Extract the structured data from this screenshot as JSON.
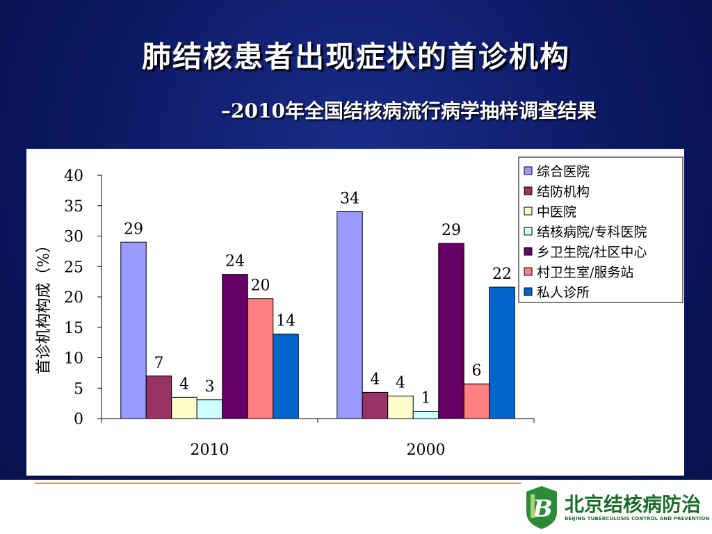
{
  "slide": {
    "title": "肺结核患者出现症状的首诊机构",
    "subtitle": "–2010年全国结核病流行病学抽样调查结果"
  },
  "logo": {
    "name": "北京结核病防治",
    "sub": "BEIJING TUBERCULOSIS CONTROL AND PREVENTION"
  },
  "chart_data": {
    "type": "bar",
    "categories": [
      "2010",
      "2000"
    ],
    "ylabel": "首诊机构构成（%）",
    "xlabel": "",
    "ylim": [
      0,
      40
    ],
    "yticks": [
      0,
      5,
      10,
      15,
      20,
      25,
      30,
      35,
      40
    ],
    "legend_position": "top-right",
    "series": [
      {
        "name": "综合医院",
        "color": "#9999ff",
        "values": [
          29,
          34
        ],
        "labels": [
          "29",
          "34"
        ]
      },
      {
        "name": "结防机构",
        "color": "#993366",
        "values": [
          7,
          4.3
        ],
        "labels": [
          "7",
          "4"
        ]
      },
      {
        "name": "中医院",
        "color": "#ffffcc",
        "values": [
          3.5,
          3.7
        ],
        "labels": [
          "4",
          "4"
        ]
      },
      {
        "name": "结核病院/专科医院",
        "color": "#ccffff",
        "values": [
          3.1,
          1.2
        ],
        "labels": [
          "3",
          "1"
        ]
      },
      {
        "name": "乡卫生院/社区中心",
        "color": "#660066",
        "values": [
          23.7,
          28.8
        ],
        "labels": [
          "24",
          "29"
        ]
      },
      {
        "name": "村卫生室/服务站",
        "color": "#ff8080",
        "values": [
          19.7,
          5.7
        ],
        "labels": [
          "20",
          "6"
        ]
      },
      {
        "name": "私人诊所",
        "color": "#0066cc",
        "values": [
          13.9,
          21.6
        ],
        "labels": [
          "14",
          "22"
        ]
      }
    ]
  }
}
